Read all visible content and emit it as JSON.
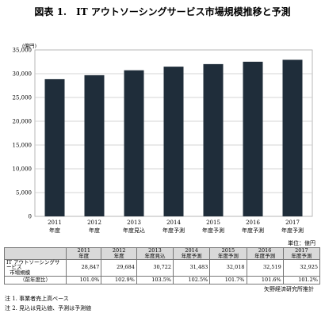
{
  "title": "図表 1.　IT アウトソーシングサービス市場規模推移と予測",
  "chart_data": {
    "type": "bar",
    "unit_label": "(億円)",
    "ylim": [
      0,
      35000
    ],
    "yticks": [
      "0",
      "5,000",
      "10,000",
      "15,000",
      "20,000",
      "25,000",
      "30,000",
      "35,000"
    ],
    "categories": [
      {
        "year": "2011",
        "suffix": "年度"
      },
      {
        "year": "2012",
        "suffix": "年度"
      },
      {
        "year": "2013",
        "suffix": "年度見込"
      },
      {
        "year": "2014",
        "suffix": "年度予測"
      },
      {
        "year": "2015",
        "suffix": "年度予測"
      },
      {
        "year": "2016",
        "suffix": "年度予測"
      },
      {
        "year": "2017",
        "suffix": "年度予測"
      }
    ],
    "values": [
      28847,
      29684,
      30722,
      31483,
      32018,
      32519,
      32925
    ],
    "bar_color": "#1f2d3a",
    "grid": true
  },
  "table": {
    "unit": "単位：億円",
    "headers": [
      {
        "year": "2011",
        "suffix": "年度"
      },
      {
        "year": "2012",
        "suffix": "年度"
      },
      {
        "year": "2013",
        "suffix": "年度見込"
      },
      {
        "year": "2014",
        "suffix": "年度予測"
      },
      {
        "year": "2015",
        "suffix": "年度予測"
      },
      {
        "year": "2016",
        "suffix": "年度予測"
      },
      {
        "year": "2017",
        "suffix": "年度予測"
      }
    ],
    "row_label_1": "IT アウトソーシングサービス",
    "row_label_2": "市場規模",
    "values": [
      "28,847",
      "29,684",
      "30,722",
      "31,483",
      "32,018",
      "32,519",
      "32,925"
    ],
    "growth_label": "（前年度比）",
    "growth": [
      "101.0%",
      "102.9%",
      "103.5%",
      "102.5%",
      "101.7%",
      "101.6%",
      "101.2%"
    ]
  },
  "source": "矢野経済研究所推計",
  "notes": [
    "注 1.  事業者売上高ベース",
    "注 2.  見込は見込値、予測は予測値"
  ]
}
